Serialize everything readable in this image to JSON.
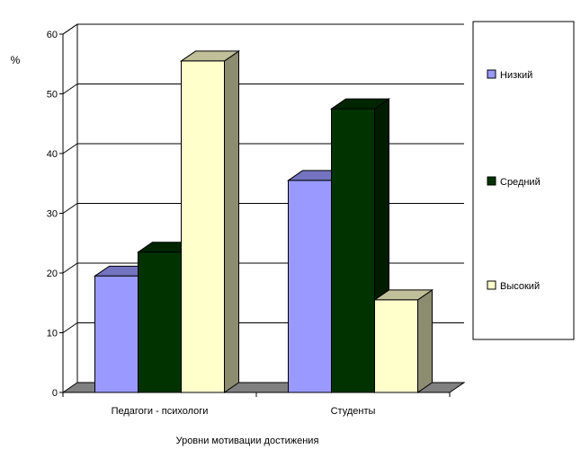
{
  "chart_data": {
    "type": "bar",
    "categories": [
      "Педагоги - психологи",
      "Студенты"
    ],
    "series": [
      {
        "name": "Низкий",
        "values": [
          19.5,
          35.5
        ],
        "color": "#9999ff"
      },
      {
        "name": "Средний",
        "values": [
          23.5,
          47.5
        ],
        "color": "#003300"
      },
      {
        "name": "Высокий",
        "values": [
          55.5,
          15.5
        ],
        "color": "#ffffcc"
      }
    ],
    "yticks": [
      0,
      10,
      20,
      30,
      40,
      50,
      60
    ],
    "ylim": [
      0,
      60
    ],
    "ylabel": "%",
    "xlabel": "Уровни мотивации достижения",
    "grid": true,
    "legend_position": "right"
  }
}
